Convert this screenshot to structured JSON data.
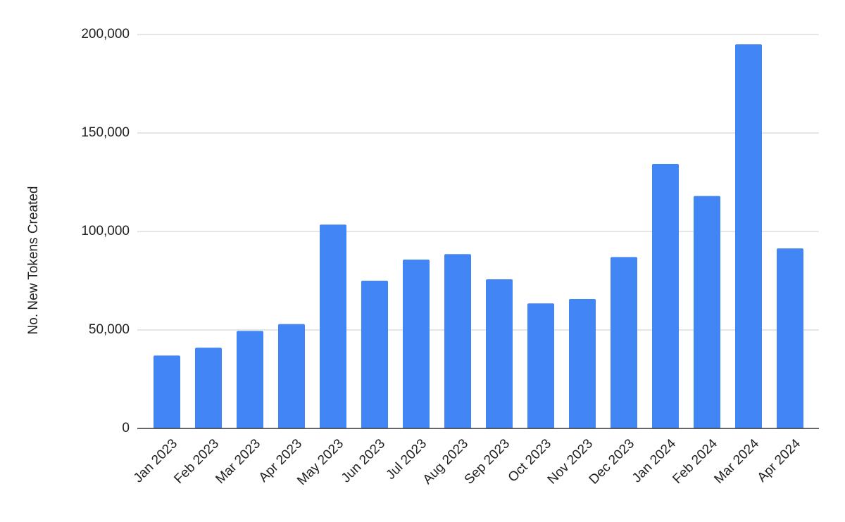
{
  "chart_data": {
    "type": "bar",
    "y_axis_label": "No. New Tokens Created",
    "categories": [
      "Jan 2023",
      "Feb 2023",
      "Mar 2023",
      "Apr 2023",
      "May 2023",
      "Jun 2023",
      "Jul 2023",
      "Aug 2023",
      "Sep 2023",
      "Oct 2023",
      "Nov 2023",
      "Dec 2023",
      "Jan 2024",
      "Feb 2024",
      "Mar 2024",
      "Apr 2024"
    ],
    "values": [
      37000,
      41000,
      49500,
      53000,
      103500,
      75000,
      85700,
      88500,
      75700,
      63500,
      65700,
      87000,
      134300,
      118000,
      195000,
      91400
    ],
    "color": "#4285f4",
    "ylim": [
      0,
      200000
    ],
    "yticks": [
      0,
      {
        "value": 50000,
        "label": "50,000"
      },
      {
        "value": 100000,
        "label": "100,000"
      },
      {
        "value": 150000,
        "label": "150,000"
      },
      {
        "value": 200000,
        "label": "200,000"
      }
    ],
    "grid": true
  }
}
